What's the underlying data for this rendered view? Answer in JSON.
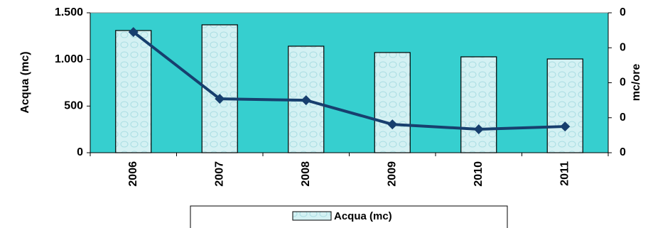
{
  "chart_data": {
    "type": "bar",
    "categories": [
      "2006",
      "2007",
      "2008",
      "2009",
      "2010",
      "2011"
    ],
    "series": [
      {
        "name": "Acqua (mc)",
        "type": "bar",
        "color": "#d4f1f3",
        "values": [
          1310,
          1371,
          1142,
          1074,
          1028,
          1005
        ]
      },
      {
        "type": "line",
        "axis": "y2",
        "color": "#173f6e",
        "values": [
          0.345,
          0.154,
          0.15,
          0.081,
          0.067,
          0.075
        ]
      }
    ],
    "ylabel": "Acqua (mc)",
    "y2label": "mc/ore",
    "ylim": [
      0,
      1500
    ],
    "yticks": [
      0,
      500,
      {
        "value": 1000,
        "label": "1.000"
      },
      {
        "value": 1500,
        "label": "1.500"
      }
    ],
    "y2lim": [
      0,
      0.4
    ],
    "y2ticks": [
      {
        "value": 0,
        "label": "0"
      },
      {
        "value": 0.1,
        "label": "0"
      },
      {
        "value": 0.2,
        "label": "0"
      },
      {
        "value": 0.3,
        "label": "0"
      },
      {
        "value": 0.4,
        "label": "0"
      }
    ],
    "plot_background": "#36cfcf",
    "grid": false,
    "legend": "bottom"
  }
}
